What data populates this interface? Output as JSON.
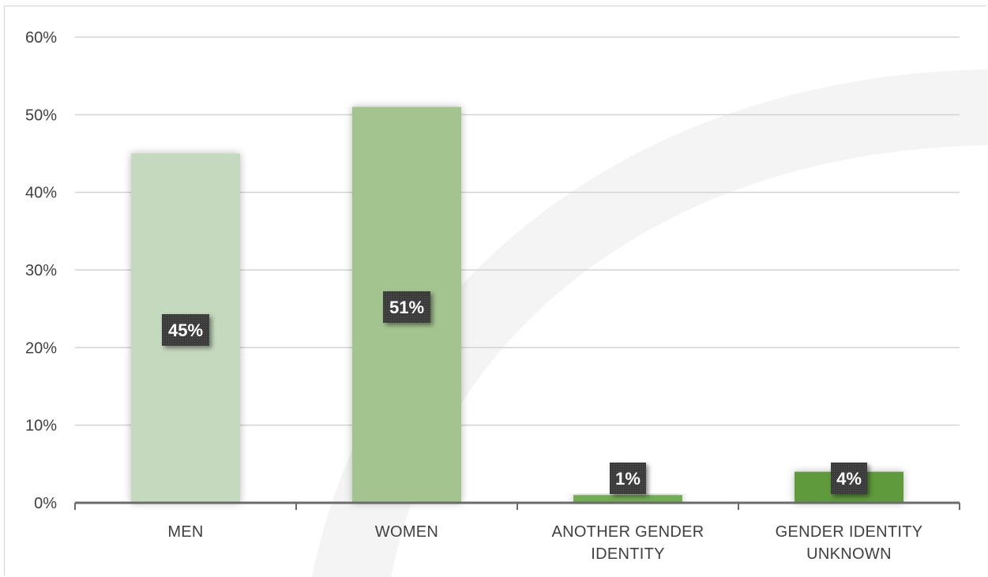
{
  "chart_data": {
    "type": "bar",
    "categories": [
      "MEN",
      "WOMEN",
      "ANOTHER GENDER IDENTITY",
      "GENDER IDENTITY UNKNOWN"
    ],
    "category_label_lines": [
      [
        "MEN"
      ],
      [
        "WOMEN"
      ],
      [
        "ANOTHER GENDER",
        "IDENTITY"
      ],
      [
        "GENDER IDENTITY",
        "UNKNOWN"
      ]
    ],
    "values": [
      45,
      51,
      1,
      4
    ],
    "data_labels": [
      "45%",
      "51%",
      "1%",
      "4%"
    ],
    "bar_colors": [
      "#c4d9bd",
      "#a3c48f",
      "#72ac55",
      "#5e9a3e"
    ],
    "ylim": [
      0,
      60
    ],
    "yticks": [
      0,
      10,
      20,
      30,
      40,
      50,
      60
    ],
    "ytick_labels": [
      "0%",
      "10%",
      "20%",
      "30%",
      "40%",
      "50%",
      "60%"
    ],
    "grid": true,
    "legend": "none",
    "title": "",
    "xlabel": "",
    "ylabel": ""
  }
}
